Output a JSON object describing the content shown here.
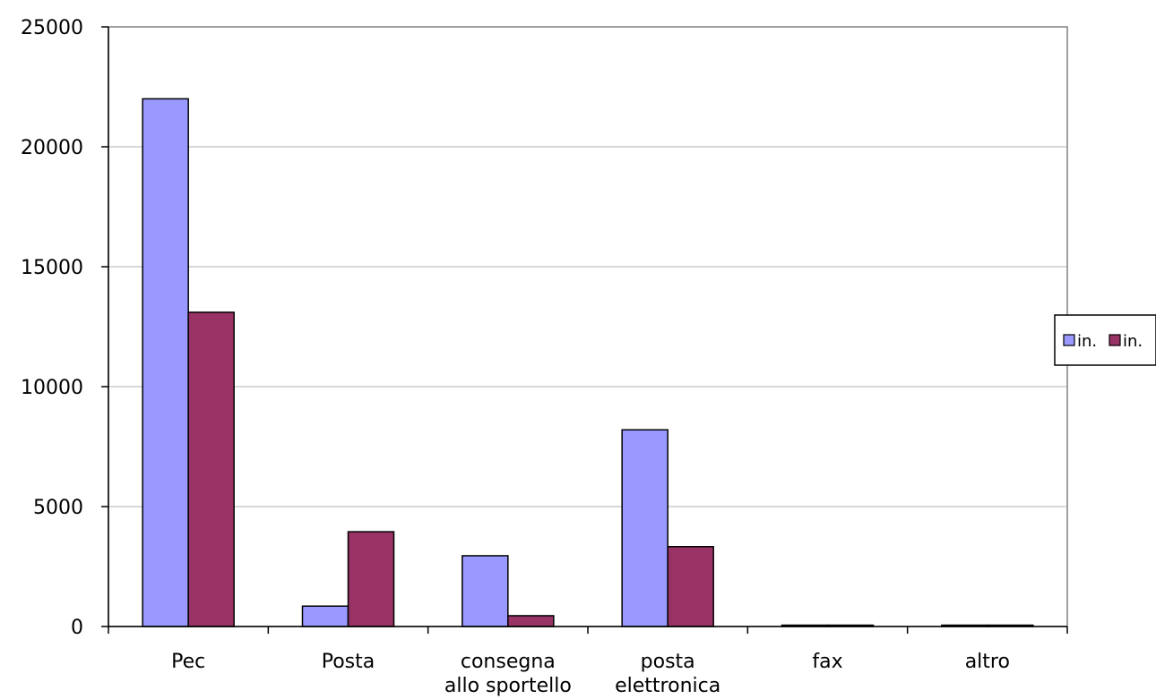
{
  "chart_data": {
    "type": "bar",
    "title": "",
    "xlabel": "",
    "ylabel": "",
    "categories": [
      [
        "Pec"
      ],
      [
        "Posta"
      ],
      [
        "consegna",
        "allo sportello"
      ],
      [
        "posta",
        "elettronica"
      ],
      [
        "fax"
      ],
      [
        "altro"
      ]
    ],
    "series": [
      {
        "name": "in.",
        "color": "#9999ff",
        "values": [
          22000,
          850,
          2950,
          8200,
          20,
          20
        ]
      },
      {
        "name": "in.",
        "color": "#993366",
        "values": [
          13100,
          3950,
          450,
          3330,
          20,
          20
        ]
      }
    ],
    "ylim": [
      0,
      25000
    ],
    "yticks": [
      0,
      5000,
      10000,
      15000,
      20000,
      25000
    ],
    "grid": true,
    "legend_position": "right"
  }
}
